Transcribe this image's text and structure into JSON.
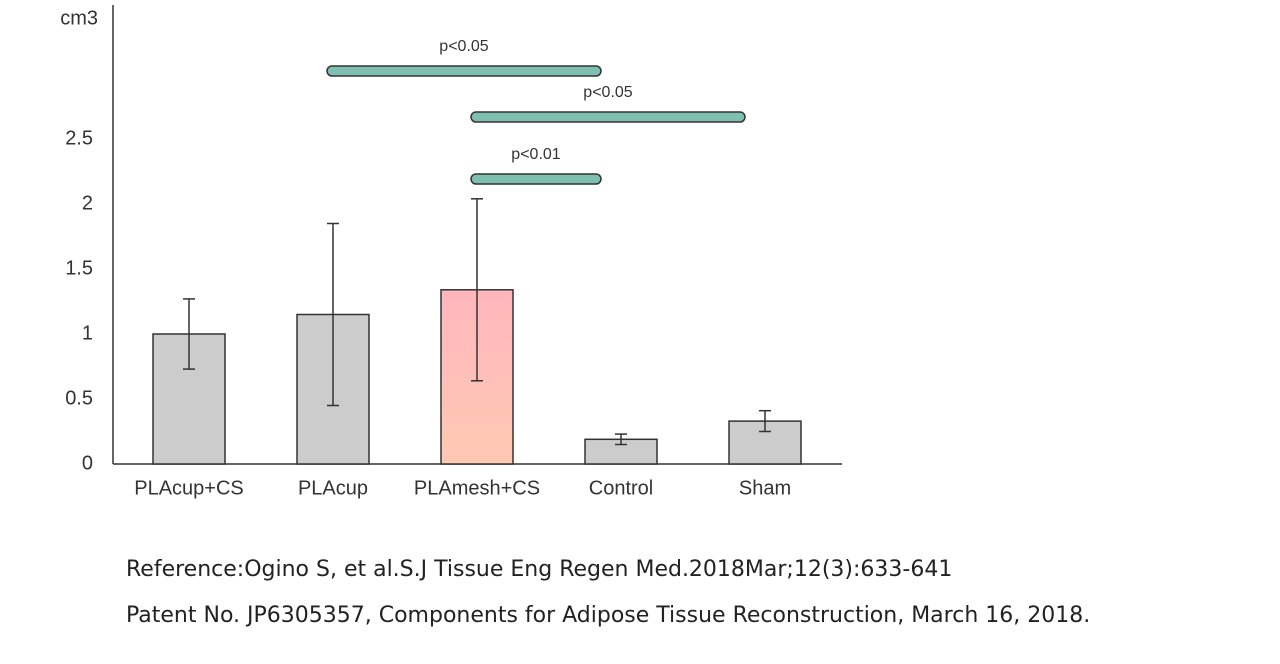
{
  "chart_data": {
    "type": "bar",
    "y_unit": "cm3",
    "categories": [
      "PLAcup+CS",
      "PLAcup",
      "PLAmesh+CS",
      "Control",
      "Sham"
    ],
    "values": [
      1.0,
      1.15,
      1.34,
      0.19,
      0.33
    ],
    "errors": [
      0.27,
      0.7,
      0.7,
      0.04,
      0.08
    ],
    "colors": [
      "#cccccc",
      "#cccccc",
      [
        "#ffb6bc",
        "#ffc9b3"
      ],
      "#cccccc",
      "#cccccc"
    ],
    "ylim": [
      0,
      3.5
    ],
    "yticks": [
      0,
      0.5,
      1,
      1.5,
      2,
      2.5
    ],
    "grid": false,
    "significance": [
      {
        "between": [
          "PLAcup",
          "Control"
        ],
        "label": "p<0.05"
      },
      {
        "between": [
          "PLAmesh+CS",
          "Sham"
        ],
        "label": "p<0.05"
      },
      {
        "between": [
          "PLAmesh+CS",
          "Control"
        ],
        "label": "p<0.01"
      }
    ],
    "significance_color": "#7fbfb0"
  },
  "footer": {
    "reference": "Reference:Ogino S, et al.S.J Tissue Eng Regen Med.2018Mar;12(3):633-641",
    "patent": "Patent No. JP6305357, Components for Adipose Tissue Reconstruction, March 16, 2018."
  }
}
